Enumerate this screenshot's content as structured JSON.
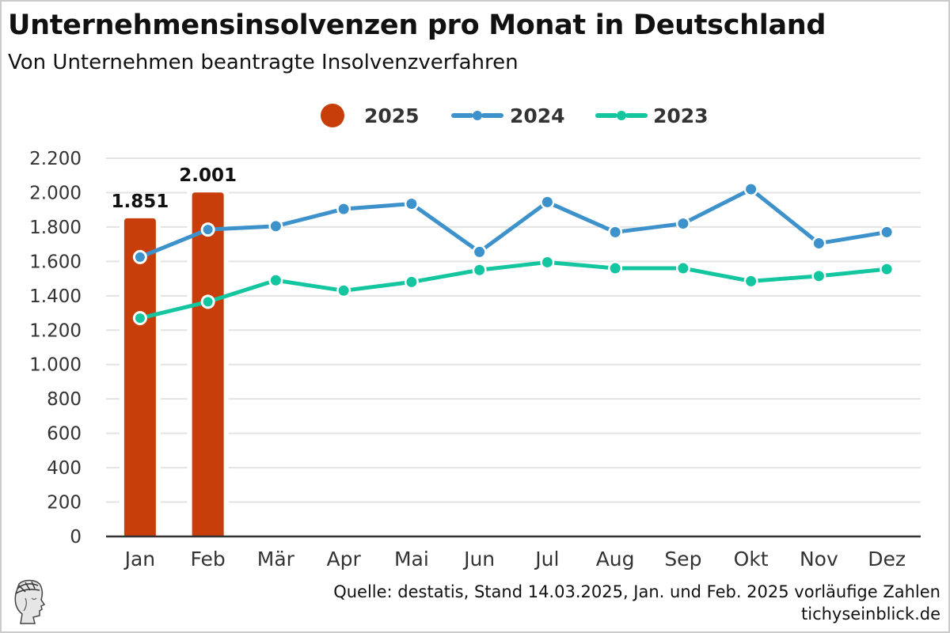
{
  "header": {
    "title": "Unternehmensinsolvenzen pro Monat in Deutschland",
    "subtitle": "Von Unternehmen beantragte Insolvenzverfahren"
  },
  "footer": {
    "source": "Quelle: destatis, Stand 14.03.2025, Jan. und Feb. 2025 vorläufige Zahlen",
    "site": "tichyseinblick.de",
    "logo_icon": "hermes-head-logo-icon"
  },
  "chart_data": {
    "type": "bar+line",
    "title": "Unternehmensinsolvenzen pro Monat in Deutschland",
    "subtitle": "Von Unternehmen beantragte Insolvenzverfahren",
    "xlabel": "",
    "ylabel": "",
    "categories": [
      "Jan",
      "Feb",
      "Mär",
      "Apr",
      "Mai",
      "Jun",
      "Jul",
      "Aug",
      "Sep",
      "Okt",
      "Nov",
      "Dez"
    ],
    "ylim": [
      0,
      2200
    ],
    "yticks": [
      0,
      200,
      400,
      600,
      800,
      1000,
      1200,
      1400,
      1600,
      1800,
      2000,
      2200
    ],
    "ytick_labels": [
      "0",
      "200",
      "400",
      "600",
      "800",
      "1.000",
      "1.200",
      "1.400",
      "1.600",
      "1.800",
      "2.000",
      "2.200"
    ],
    "grid": true,
    "legend_position": "top-center",
    "series": [
      {
        "name": "2025",
        "type": "bar",
        "color": "#C73E0A",
        "values": [
          1851,
          2001,
          null,
          null,
          null,
          null,
          null,
          null,
          null,
          null,
          null,
          null
        ],
        "data_labels": [
          "1.851",
          "2.001"
        ]
      },
      {
        "name": "2024",
        "type": "line",
        "color": "#3D92CC",
        "values": [
          1625,
          1785,
          1805,
          1905,
          1935,
          1655,
          1945,
          1770,
          1820,
          2020,
          1705,
          1770
        ]
      },
      {
        "name": "2023",
        "type": "line",
        "color": "#13C6A0",
        "values": [
          1270,
          1365,
          1490,
          1430,
          1480,
          1550,
          1595,
          1560,
          1560,
          1485,
          1515,
          1555
        ]
      }
    ]
  }
}
